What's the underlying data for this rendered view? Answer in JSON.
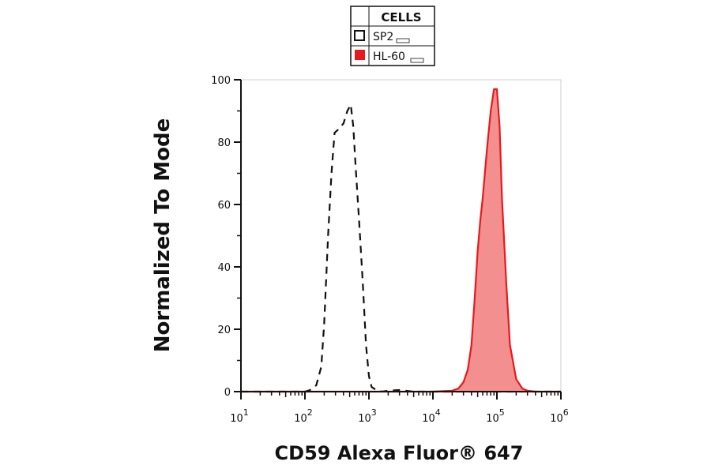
{
  "legend": {
    "header": "CELLS",
    "items": [
      {
        "label": "SP2",
        "swatch": "open",
        "color": "#111111"
      },
      {
        "label": "HL-60",
        "swatch": "filled",
        "color": "#e8191b"
      }
    ]
  },
  "chart_data": {
    "type": "area",
    "xlabel": "CD59 Alexa Fluor® 647",
    "ylabel": "Normalized To Mode",
    "x_scale": "log",
    "xlim": [
      10,
      1000000
    ],
    "ylim": [
      0,
      100
    ],
    "yticks": [
      0,
      20,
      40,
      60,
      80,
      100
    ],
    "xticks": [
      {
        "base": "10",
        "exp": "1",
        "value": 10
      },
      {
        "base": "10",
        "exp": "2",
        "value": 100
      },
      {
        "base": "10",
        "exp": "3",
        "value": 1000
      },
      {
        "base": "10",
        "exp": "4",
        "value": 10000
      },
      {
        "base": "10",
        "exp": "5",
        "value": 100000
      },
      {
        "base": "10",
        "exp": "6",
        "value": 1000000
      }
    ],
    "grid": false,
    "legend_position": "top-center",
    "series": [
      {
        "name": "SP2",
        "style": "dashed",
        "color": "#111111",
        "fill": "none",
        "x": [
          10,
          100,
          120,
          150,
          180,
          200,
          230,
          260,
          290,
          330,
          400,
          460,
          520,
          570,
          620,
          700,
          800,
          900,
          1000,
          1100,
          1300,
          1600,
          2000,
          3000,
          5000,
          1000000
        ],
        "y": [
          0,
          0,
          0.5,
          2,
          8,
          22,
          50,
          70,
          83,
          84,
          86,
          90,
          92,
          85,
          72,
          55,
          35,
          15,
          5,
          1.5,
          0.5,
          0,
          0.3,
          0.5,
          0,
          0
        ]
      },
      {
        "name": "HL-60",
        "style": "solid",
        "color": "#e8191b",
        "fill": "#f38f8f",
        "x": [
          10,
          10000,
          20000,
          25000,
          30000,
          35000,
          40000,
          45000,
          50000,
          55000,
          60000,
          70000,
          80000,
          90000,
          100000,
          110000,
          120000,
          140000,
          160000,
          200000,
          250000,
          300000,
          400000,
          1000000
        ],
        "y": [
          0,
          0,
          0.3,
          1,
          3,
          7,
          15,
          30,
          45,
          55,
          62,
          78,
          90,
          97,
          97,
          85,
          62,
          35,
          15,
          4,
          1,
          0.3,
          0,
          0
        ]
      }
    ]
  }
}
